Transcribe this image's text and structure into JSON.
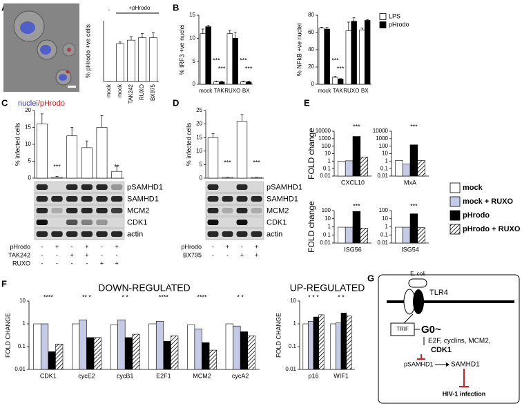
{
  "panel_labels": [
    "A",
    "B",
    "C",
    "D",
    "E",
    "F",
    "G"
  ],
  "image_label": [
    "nuclei",
    "/pHrodo"
  ],
  "chart_data": [
    {
      "type": "bar",
      "ylabel": "% pHrodo +ve cells",
      "group_labels": [
        "-",
        "+pHrodo"
      ],
      "categories": [
        "mock",
        "mock",
        "TAK242",
        "RUXO",
        "BX975"
      ],
      "values": [
        0,
        62,
        68,
        72,
        72
      ],
      "errors": [
        0,
        3,
        6,
        7,
        8
      ],
      "color": "#ffffff",
      "ylim": [
        0,
        100
      ]
    },
    {
      "type": "bar",
      "ylabel": "% IRF3 +ve nuclei",
      "categories": [
        "mock",
        "TAK",
        "RUXO",
        "BX"
      ],
      "series": [
        {
          "color": "#ffffff",
          "values": [
            11,
            0.5,
            11,
            0.5
          ],
          "errors": [
            1,
            0.2,
            0.7,
            0.2
          ],
          "annotations": [
            null,
            "***",
            null,
            "***"
          ]
        },
        {
          "color": "#000000",
          "values": [
            12.5,
            0.5,
            10,
            0.5
          ],
          "errors": [
            0.3,
            0.2,
            1.3,
            0.2
          ],
          "annotations": [
            null,
            "***",
            null,
            "***"
          ]
        }
      ],
      "ylim": [
        0,
        15
      ],
      "yticks": [
        0,
        5,
        10,
        15
      ]
    },
    {
      "type": "bar",
      "ylabel": "% NFkB +ve nuclei",
      "categories": [
        "mock",
        "TAK",
        "RUXO",
        "BX"
      ],
      "legend": "top-right",
      "series": [
        {
          "name": "LPS",
          "color": "#ffffff",
          "values": [
            65,
            8,
            62,
            63
          ],
          "errors": [
            1,
            1,
            10,
            2
          ],
          "annotations": [
            null,
            "***",
            null,
            null
          ]
        },
        {
          "name": "pHrodo",
          "color": "#000000",
          "values": [
            64,
            6,
            73,
            74
          ],
          "errors": [
            2,
            0.5,
            4,
            1
          ],
          "annotations": [
            null,
            "***",
            null,
            null
          ]
        }
      ],
      "ylim": [
        0,
        80
      ],
      "yticks": [
        0,
        20,
        40,
        60,
        80
      ]
    },
    {
      "type": "bar",
      "ylabel": "% infected cells",
      "values": [
        16,
        0.3,
        12.5,
        9,
        15,
        2
      ],
      "errors": [
        3,
        0.2,
        2.5,
        2,
        3.5,
        1.5
      ],
      "annotations": [
        null,
        "***",
        null,
        null,
        null,
        "**"
      ],
      "color": "#ffffff",
      "ylim": [
        0,
        20
      ],
      "yticks": [
        0,
        5,
        10,
        15,
        20
      ],
      "blot_labels": [
        "pSAMHD1",
        "SAMHD1",
        "MCM2",
        "CDK1",
        "actin"
      ],
      "conditions": [
        {
          "name": "pHrodo",
          "values": [
            "-",
            "+",
            "-",
            "+",
            "-",
            "+"
          ]
        },
        {
          "name": "TAK242",
          "values": [
            "-",
            "-",
            "+",
            "+",
            "-",
            "-"
          ]
        },
        {
          "name": "RUXO",
          "values": [
            "-",
            "-",
            "-",
            "-",
            "+",
            "+"
          ]
        }
      ]
    },
    {
      "type": "bar",
      "ylabel": "% infected cells",
      "values": [
        15,
        0.3,
        21,
        0.3
      ],
      "errors": [
        1.5,
        0.1,
        2.5,
        0.1
      ],
      "annotations": [
        null,
        "***",
        null,
        "***"
      ],
      "color": "#ffffff",
      "ylim": [
        0,
        25
      ],
      "yticks": [
        0,
        5,
        10,
        15,
        20,
        25
      ],
      "blot_labels": [
        "pSAMHD1",
        "SAMHD1",
        "MCM2",
        "CDK1",
        "actin"
      ],
      "conditions": [
        {
          "name": "pHrodo",
          "values": [
            "-",
            "+",
            "-",
            "+"
          ]
        },
        {
          "name": "BX795",
          "values": [
            "-",
            "-",
            "+",
            "+"
          ]
        }
      ]
    },
    {
      "type": "bar",
      "log": true,
      "ylabel": "FOLD change",
      "categories": [
        "CXCL10"
      ],
      "series": [
        {
          "color": "#ffffff",
          "values": [
            1
          ]
        },
        {
          "color": "#c5cbe6",
          "values": [
            1.1
          ]
        },
        {
          "color": "#000000",
          "values": [
            2000
          ],
          "annotations": [
            "***"
          ]
        },
        {
          "color": "#ffffff",
          "pattern": "hatch",
          "values": [
            3.5
          ]
        }
      ],
      "ylim": [
        0.01,
        10000
      ],
      "yticks": [
        0.01,
        0.1,
        1,
        10,
        100,
        1000,
        10000
      ]
    },
    {
      "type": "bar",
      "log": true,
      "categories": [
        "MxA"
      ],
      "legend": "right",
      "series": [
        {
          "name": "mock",
          "color": "#ffffff",
          "values": [
            1.2
          ]
        },
        {
          "name": "mock + RUXO",
          "color": "#c5cbe6",
          "values": [
            0.4
          ]
        },
        {
          "name": "pHrodo",
          "color": "#000000",
          "values": [
            150
          ],
          "annotations": [
            "***"
          ]
        },
        {
          "name": "pHrodo + RUXO",
          "color": "#ffffff",
          "pattern": "hatch",
          "values": [
            1.2
          ]
        }
      ],
      "ylim": [
        0.01,
        10000
      ],
      "yticks": [
        0.01,
        0.1,
        1,
        10,
        100,
        1000,
        10000
      ]
    },
    {
      "type": "bar",
      "log": true,
      "ylabel": "FOLD change",
      "categories": [
        "ISG56"
      ],
      "series": [
        {
          "color": "#ffffff",
          "values": [
            0.9
          ]
        },
        {
          "color": "#c5cbe6",
          "values": [
            0.9
          ]
        },
        {
          "color": "#000000",
          "values": [
            80
          ],
          "annotations": [
            "***"
          ]
        },
        {
          "color": "#ffffff",
          "pattern": "hatch",
          "values": [
            0.7
          ]
        }
      ],
      "ylim": [
        0.01,
        100
      ],
      "yticks": [
        0.01,
        0.1,
        1,
        10,
        100
      ]
    },
    {
      "type": "bar",
      "log": true,
      "categories": [
        "ISG54"
      ],
      "series": [
        {
          "color": "#ffffff",
          "values": [
            0.9
          ]
        },
        {
          "color": "#c5cbe6",
          "values": [
            0.9
          ]
        },
        {
          "color": "#000000",
          "values": [
            40
          ],
          "annotations": [
            "***"
          ]
        },
        {
          "color": "#ffffff",
          "pattern": "hatch",
          "values": [
            0.8
          ]
        }
      ],
      "ylim": [
        0.01,
        100
      ],
      "yticks": [
        0.01,
        0.1,
        1,
        10,
        100
      ]
    },
    {
      "type": "bar",
      "log": true,
      "title": "DOWN-REGULATED",
      "ylabel": "FOLD CHANGE",
      "categories": [
        "CDK1",
        "cycE2",
        "cycB1",
        "E2F1",
        "MCM2",
        "cycA2"
      ],
      "annotations": [
        "****",
        "** *",
        "* *",
        "****",
        "****",
        "* *"
      ],
      "series": [
        {
          "color": "#ffffff",
          "values": [
            1,
            1,
            0.9,
            1,
            0.9,
            1
          ]
        },
        {
          "color": "#c5cbe6",
          "values": [
            1,
            1.5,
            1.5,
            1.3,
            0.6,
            0.8
          ]
        },
        {
          "color": "#000000",
          "values": [
            0.06,
            0.25,
            0.25,
            0.17,
            0.15,
            0.45
          ]
        },
        {
          "color": "#ffffff",
          "pattern": "hatch",
          "values": [
            0.13,
            0.25,
            0.35,
            0.3,
            0.07,
            0.3
          ]
        }
      ],
      "ylim": [
        0.01,
        10
      ],
      "yticks": [
        0.01,
        0.1,
        1,
        10
      ]
    },
    {
      "type": "bar",
      "log": true,
      "title": "UP-REGULATED",
      "ylabel": "FOLD CHANGE",
      "categories": [
        "p16",
        "WIF1"
      ],
      "annotations": [
        "* * *",
        "* *"
      ],
      "series": [
        {
          "color": "#ffffff",
          "values": [
            1,
            1
          ]
        },
        {
          "color": "#c5cbe6",
          "values": [
            1.3,
            1.1
          ]
        },
        {
          "color": "#000000",
          "values": [
            2,
            3
          ]
        },
        {
          "color": "#ffffff",
          "pattern": "hatch",
          "values": [
            2.5,
            2.2
          ]
        }
      ],
      "ylim": [
        0.01,
        10
      ],
      "yticks": [
        0.01,
        0.1,
        1,
        10
      ]
    }
  ],
  "diagram": {
    "bacterium": "E. coli",
    "receptor": "TLR4",
    "adaptor": "TRIF",
    "state": "G0~",
    "targets": "E2F, cyclins, MCM2,",
    "kinase": "CDK1",
    "phospho": "pSAMHD1",
    "protein": "SAMHD1",
    "outcome": "HIV-1 infection"
  }
}
